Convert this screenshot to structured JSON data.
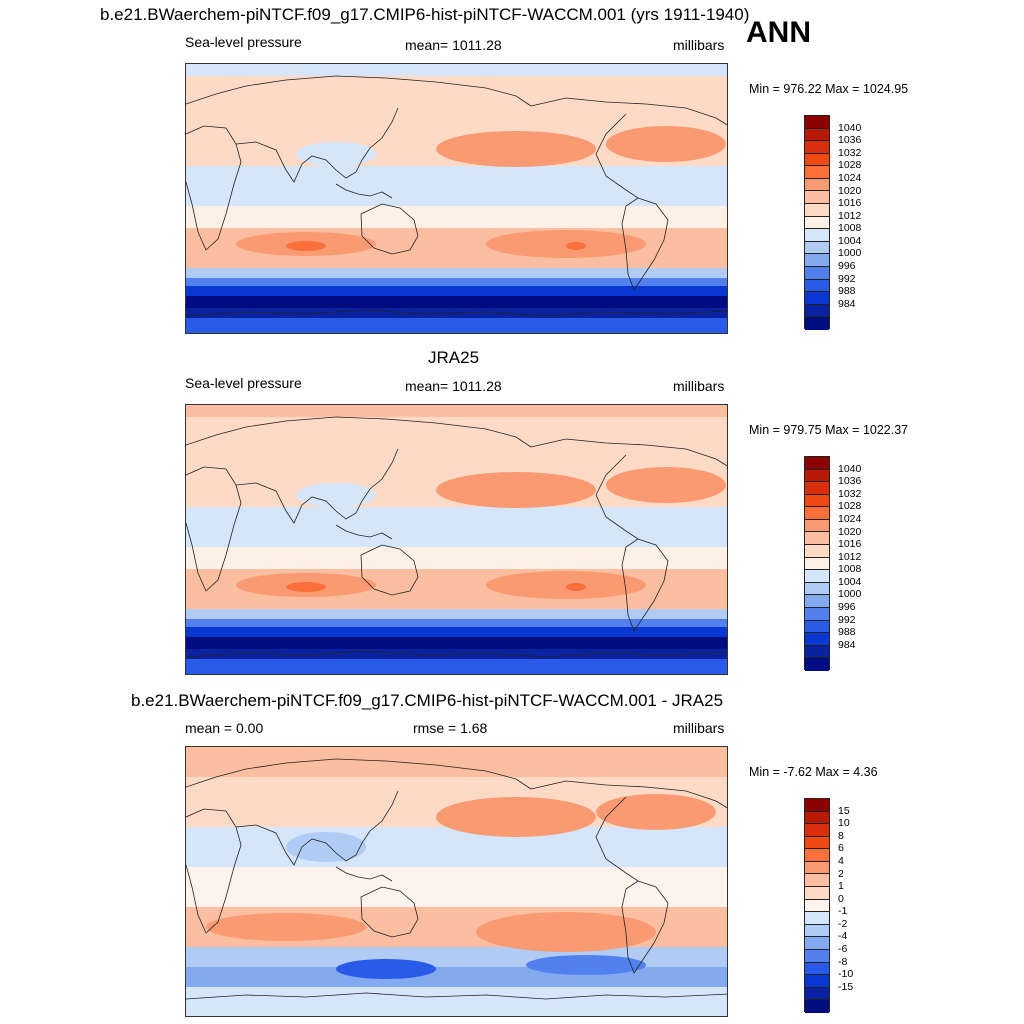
{
  "panels": [
    {
      "title": "b.e21.BWaerchem-piNTCF.f09_g17.CMIP6-hist-piNTCF-WACCM.001 (yrs 1911-1940)",
      "left_label": "Sea-level pressure",
      "center_label": "mean= 1011.28",
      "right_label": "millibars",
      "minmax": "Min = 976.22 Max = 1024.95",
      "colorbar": {
        "labels": [
          "1040",
          "1036",
          "1032",
          "1028",
          "1024",
          "1020",
          "1016",
          "1012",
          "1008",
          "1004",
          "1000",
          "996",
          "992",
          "988",
          "984"
        ],
        "colors": [
          "#8b0000",
          "#b81a08",
          "#d8300c",
          "#f04a14",
          "#fa6f3a",
          "#f99a72",
          "#fbbea0",
          "#fddac6",
          "#fdf0e6",
          "#d5e6fb",
          "#b0ccf4",
          "#83a9ef",
          "#5281ee",
          "#2a5ae8",
          "#0a36d2",
          "#0a229f",
          "#010c80"
        ]
      },
      "map_variant": "model"
    },
    {
      "title": "JRA25",
      "left_label": "Sea-level pressure",
      "center_label": "mean= 1011.28",
      "right_label": "millibars",
      "minmax": "Min = 979.75 Max = 1022.37",
      "colorbar": {
        "labels": [
          "1040",
          "1036",
          "1032",
          "1028",
          "1024",
          "1020",
          "1016",
          "1012",
          "1008",
          "1004",
          "1000",
          "996",
          "992",
          "988",
          "984"
        ],
        "colors": [
          "#8b0000",
          "#b81a08",
          "#d8300c",
          "#f04a14",
          "#fa6f3a",
          "#f99a72",
          "#fbbea0",
          "#fddac6",
          "#fdf0e6",
          "#d5e6fb",
          "#b0ccf4",
          "#83a9ef",
          "#5281ee",
          "#2a5ae8",
          "#0a36d2",
          "#0a229f",
          "#010c80"
        ]
      },
      "map_variant": "obs"
    },
    {
      "title": "b.e21.BWaerchem-piNTCF.f09_g17.CMIP6-hist-piNTCF-WACCM.001 - JRA25",
      "left_label": "mean =   0.00",
      "center_label": "rmse =   1.68",
      "right_label": "millibars",
      "minmax": "Min =  -7.62 Max =   4.36",
      "colorbar": {
        "labels": [
          "15",
          "10",
          "8",
          "6",
          "4",
          "2",
          "1",
          "0",
          "-1",
          "-2",
          "-4",
          "-6",
          "-8",
          "-10",
          "-15"
        ],
        "colors": [
          "#8b0000",
          "#b81a08",
          "#d8300c",
          "#f04a14",
          "#fa6f3a",
          "#f99a72",
          "#fbbea0",
          "#fddac6",
          "#fdf3ec",
          "#d5e6fb",
          "#b0ccf4",
          "#83a9ef",
          "#5281ee",
          "#2a5ae8",
          "#0a36d2",
          "#0a229f",
          "#010c80"
        ]
      },
      "map_variant": "diff"
    }
  ],
  "season": "ANN"
}
